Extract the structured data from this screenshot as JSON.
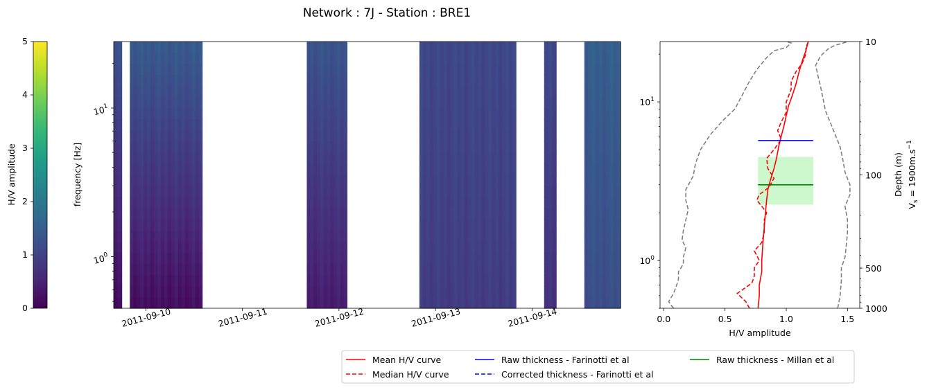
{
  "figure": {
    "title": "Network : 7J - Station : BRE1"
  },
  "colorbar": {
    "label": "H/V amplitude",
    "ticks": [
      "0",
      "1",
      "2",
      "3",
      "4",
      "5"
    ],
    "range": [
      0,
      5
    ],
    "colormap": [
      "#440154",
      "#482878",
      "#3e4989",
      "#31688e",
      "#26828e",
      "#1f9e89",
      "#35b779",
      "#6ece58",
      "#b5de2b",
      "#fde725"
    ]
  },
  "spectrogram": {
    "ylabel": "frequency [Hz]",
    "ytick_labels": [
      {
        "base": "10",
        "exp": "1"
      },
      {
        "base": "10",
        "exp": "0"
      }
    ],
    "xtick_labels": [
      "2011-09-10",
      "2011-09-11",
      "2011-09-12",
      "2011-09-13",
      "2011-09-14"
    ]
  },
  "hv_panel": {
    "xlabel": "H/V amplitude",
    "xtick_labels": [
      "0.0",
      "0.5",
      "1.0",
      "1.5"
    ],
    "ytick_labels": [
      {
        "base": "10",
        "exp": "1"
      },
      {
        "base": "10",
        "exp": "0"
      }
    ],
    "depth_ticks": [
      "10",
      "100",
      "500",
      "1000"
    ],
    "depth_label": "Depth (m)",
    "vs_label": {
      "prefix": "V",
      "sub": "s",
      "mid": " = 1900m.s",
      "sup": "−1"
    }
  },
  "legend": {
    "items": [
      {
        "label": "Mean H/V curve",
        "color": "#ff0000",
        "dashed": false
      },
      {
        "label": "Median H/V curve",
        "color": "#ff0000",
        "dashed": true
      },
      {
        "label": "Raw thickness - Farinotti et al",
        "color": "#0000ff",
        "dashed": false
      },
      {
        "label": "Corrected thickness - Farinotti et al",
        "color": "#0000ff",
        "dashed": true
      },
      {
        "label": "Raw thickness - Millan et al",
        "color": "#008000",
        "dashed": false
      }
    ]
  },
  "chart_data": [
    {
      "type": "heatmap",
      "title": "",
      "ylabel": "frequency [Hz]",
      "yscale": "log",
      "ylim": [
        0.45,
        28
      ],
      "xlim": [
        "2011-09-09 16:00",
        "2011-09-14 22:00"
      ],
      "value_range": [
        0,
        5
      ],
      "segments": [
        {
          "start": "2011-09-09 16:00",
          "end": "2011-09-09 18:00",
          "low_freq_value": 0.2,
          "high_freq_value": 1.3
        },
        {
          "start": "2011-09-09 20:00",
          "end": "2011-09-10 14:00",
          "low_freq_value": 0.2,
          "high_freq_value": 1.4
        },
        {
          "start": "2011-09-11 16:00",
          "end": "2011-09-12 02:00",
          "low_freq_value": 0.4,
          "high_freq_value": 1.3
        },
        {
          "start": "2011-09-12 20:00",
          "end": "2011-09-13 20:00",
          "low_freq_value": 0.9,
          "high_freq_value": 1.1
        },
        {
          "start": "2011-09-14 03:00",
          "end": "2011-09-14 06:00",
          "low_freq_value": 0.7,
          "high_freq_value": 1.1
        },
        {
          "start": "2011-09-14 13:00",
          "end": "2011-09-14 22:00",
          "low_freq_value": 1.2,
          "high_freq_value": 1.5
        }
      ]
    },
    {
      "type": "line",
      "title": "",
      "xlabel": "H/V amplitude",
      "yscale": "log",
      "xlim": [
        -0.03,
        1.6
      ],
      "ylim": [
        0.5,
        24
      ],
      "series": [
        {
          "name": "Mean H/V curve",
          "color": "#ff0000",
          "style": "solid",
          "points": [
            [
              0.77,
              0.5
            ],
            [
              0.78,
              0.6
            ],
            [
              0.78,
              0.7
            ],
            [
              0.8,
              0.85
            ],
            [
              0.8,
              1.0
            ],
            [
              0.81,
              1.3
            ],
            [
              0.82,
              1.6
            ],
            [
              0.83,
              2.0
            ],
            [
              0.84,
              2.4
            ],
            [
              0.85,
              2.8
            ],
            [
              0.87,
              3.2
            ],
            [
              0.9,
              3.8
            ],
            [
              0.92,
              4.4
            ],
            [
              0.94,
              5.3
            ],
            [
              0.96,
              6.1
            ],
            [
              0.98,
              7.0
            ],
            [
              1.0,
              8.2
            ],
            [
              1.02,
              9.5
            ],
            [
              1.05,
              11.0
            ],
            [
              1.08,
              13.0
            ],
            [
              1.1,
              15.0
            ],
            [
              1.12,
              17.0
            ],
            [
              1.14,
              19.0
            ],
            [
              1.16,
              21.0
            ],
            [
              1.18,
              24.0
            ]
          ]
        },
        {
          "name": "Median H/V curve",
          "color": "#ff0000",
          "style": "dashed",
          "points": [
            [
              0.7,
              0.5
            ],
            [
              0.67,
              0.55
            ],
            [
              0.6,
              0.62
            ],
            [
              0.65,
              0.66
            ],
            [
              0.72,
              0.72
            ],
            [
              0.74,
              0.8
            ],
            [
              0.74,
              0.9
            ],
            [
              0.78,
              1.0
            ],
            [
              0.74,
              1.15
            ],
            [
              0.8,
              1.3
            ],
            [
              0.82,
              1.5
            ],
            [
              0.82,
              1.8
            ],
            [
              0.84,
              2.0
            ],
            [
              0.8,
              2.2
            ],
            [
              0.76,
              2.4
            ],
            [
              0.78,
              2.6
            ],
            [
              0.86,
              2.9
            ],
            [
              0.9,
              3.3
            ],
            [
              0.85,
              3.8
            ],
            [
              0.84,
              4.4
            ],
            [
              0.9,
              5.0
            ],
            [
              0.96,
              5.8
            ],
            [
              0.93,
              6.6
            ],
            [
              0.96,
              7.5
            ],
            [
              1.0,
              8.6
            ],
            [
              1.0,
              10.0
            ],
            [
              1.04,
              12.0
            ],
            [
              1.04,
              13.5
            ],
            [
              1.08,
              15.5
            ],
            [
              1.13,
              17.5
            ],
            [
              1.16,
              20.0
            ],
            [
              1.16,
              22.0
            ],
            [
              1.18,
              24.0
            ]
          ]
        },
        {
          "name": "Standard deviation (lower)",
          "color": "#808080",
          "style": "dashed",
          "points": [
            [
              0.08,
              0.5
            ],
            [
              0.04,
              0.55
            ],
            [
              0.08,
              0.62
            ],
            [
              0.1,
              0.68
            ],
            [
              0.12,
              0.76
            ],
            [
              0.12,
              0.85
            ],
            [
              0.16,
              0.95
            ],
            [
              0.16,
              1.05
            ],
            [
              0.18,
              1.2
            ],
            [
              0.15,
              1.35
            ],
            [
              0.16,
              1.55
            ],
            [
              0.18,
              1.8
            ],
            [
              0.2,
              2.1
            ],
            [
              0.18,
              2.4
            ],
            [
              0.18,
              2.8
            ],
            [
              0.24,
              3.4
            ],
            [
              0.26,
              4.1
            ],
            [
              0.3,
              5.0
            ],
            [
              0.38,
              6.2
            ],
            [
              0.48,
              7.6
            ],
            [
              0.58,
              9.0
            ],
            [
              0.64,
              11.0
            ],
            [
              0.7,
              13.5
            ],
            [
              0.76,
              16.0
            ],
            [
              0.84,
              19.0
            ],
            [
              0.9,
              21.0
            ],
            [
              1.0,
              22.0
            ],
            [
              1.04,
              23.5
            ],
            [
              1.0,
              24.0
            ]
          ]
        },
        {
          "name": "Standard deviation (upper)",
          "color": "#808080",
          "style": "dashed",
          "points": [
            [
              1.42,
              0.5
            ],
            [
              1.44,
              0.6
            ],
            [
              1.45,
              0.75
            ],
            [
              1.45,
              0.9
            ],
            [
              1.48,
              1.05
            ],
            [
              1.49,
              1.25
            ],
            [
              1.5,
              1.5
            ],
            [
              1.5,
              1.8
            ],
            [
              1.48,
              2.2
            ],
            [
              1.52,
              2.6
            ],
            [
              1.52,
              3.0
            ],
            [
              1.48,
              3.6
            ],
            [
              1.46,
              4.4
            ],
            [
              1.44,
              5.2
            ],
            [
              1.4,
              6.2
            ],
            [
              1.36,
              7.4
            ],
            [
              1.32,
              8.8
            ],
            [
              1.3,
              10.5
            ],
            [
              1.28,
              12.5
            ],
            [
              1.26,
              14.5
            ],
            [
              1.24,
              17.0
            ],
            [
              1.28,
              19.5
            ],
            [
              1.34,
              21.5
            ],
            [
              1.4,
              22.8
            ],
            [
              1.46,
              23.4
            ],
            [
              1.5,
              24.0
            ]
          ]
        }
      ],
      "horizontal_lines": [
        {
          "name": "Raw thickness - Farinotti et al",
          "color": "#0000ff",
          "y": 5.7,
          "x_range": [
            0.77,
            1.22
          ]
        },
        {
          "name": "Raw thickness - Millan et al",
          "color": "#008000",
          "y": 3.0,
          "x_range": [
            0.77,
            1.22
          ]
        }
      ],
      "shaded_band": {
        "color": "#90ee90",
        "y_range": [
          2.25,
          4.5
        ],
        "x_range": [
          0.77,
          1.22
        ]
      },
      "secondary_axis": {
        "label": "Depth (m)",
        "ticks": [
          10,
          100,
          500,
          1000
        ]
      }
    }
  ]
}
